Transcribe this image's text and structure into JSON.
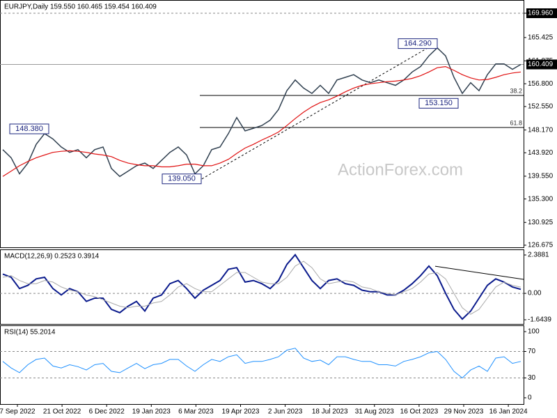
{
  "chart_data": [
    {
      "type": "line",
      "title": "EURJPY,Daily  159.550 160.465 159.454 160.409",
      "watermark": "ActionForex.com",
      "ylim": [
        126.28,
        172.43
      ],
      "yticks": [
        {
          "value": 169.96,
          "label": "169.960"
        },
        {
          "value": 165.425,
          "label": "165.425"
        },
        {
          "value": 161.075,
          "label": "161.075"
        },
        {
          "value": 156.8,
          "label": "156.800"
        },
        {
          "value": 152.55,
          "label": "152.550"
        },
        {
          "value": 148.17,
          "label": "148.170"
        },
        {
          "value": 143.92,
          "label": "143.920"
        },
        {
          "value": 139.55,
          "label": "139.550"
        },
        {
          "value": 135.3,
          "label": "135.300"
        },
        {
          "value": 130.925,
          "label": "130.925"
        },
        {
          "value": 126.675,
          "label": "126.675"
        }
      ],
      "guide_lines": [
        169.96
      ],
      "last_price": {
        "value": 160.409,
        "label": "160.409"
      },
      "fib_levels": [
        {
          "value": 154.62,
          "label": "38.2"
        },
        {
          "value": 148.64,
          "label": "61.8"
        }
      ],
      "annotations": [
        {
          "value": 148.38,
          "label": "148.380"
        },
        {
          "value": 139.05,
          "label": "139.050"
        },
        {
          "value": 164.29,
          "label": "164.290"
        },
        {
          "value": 153.15,
          "label": "153.150"
        }
      ],
      "trendline": [
        139.05,
        164.29
      ],
      "series": [
        {
          "color": "#2f3f4f",
          "values": [
            144.5,
            143.0,
            140.0,
            142.0,
            145.5,
            147.5,
            146.5,
            145.0,
            144.0,
            144.5,
            143.0,
            144.5,
            145.0,
            141.0,
            139.5,
            140.5,
            141.5,
            142.0,
            141.0,
            142.5,
            144.0,
            145.0,
            143.5,
            140.0,
            141.5,
            144.5,
            145.0,
            147.5,
            150.5,
            148.0,
            148.5,
            149.0,
            150.0,
            152.0,
            155.5,
            157.5,
            156.0,
            155.0,
            156.5,
            155.0,
            157.5,
            158.0,
            158.5,
            157.5,
            157.0,
            157.5,
            157.0,
            156.5,
            157.5,
            159.0,
            160.0,
            162.0,
            163.5,
            162.0,
            158.0,
            155.0,
            157.0,
            155.5,
            158.5,
            160.5,
            160.5,
            159.5,
            160.4
          ]
        },
        {
          "color": "#e01010",
          "values": [
            139.5,
            140.5,
            141.5,
            142.3,
            143.0,
            143.5,
            144,
            144.2,
            144.3,
            144.2,
            144.0,
            143.7,
            143.5,
            143.2,
            142.5,
            142.0,
            141.7,
            141.5,
            141.5,
            141.3,
            141.3,
            141.5,
            141.8,
            141.8,
            141.5,
            141.5,
            142.0,
            142.7,
            143.8,
            144.8,
            145.5,
            146.3,
            147.0,
            147.8,
            149.0,
            150.3,
            151.5,
            152.5,
            153.3,
            153.8,
            154.5,
            155.3,
            156.0,
            156.5,
            156.8,
            157.0,
            157.2,
            157.3,
            157.5,
            157.8,
            158.3,
            159.0,
            159.8,
            160.0,
            159.3,
            158.5,
            157.9,
            157.5,
            157.6,
            158.0,
            158.5,
            158.8,
            159.0
          ]
        }
      ]
    },
    {
      "type": "line",
      "title": "MACD(12,26,9) 0.2523 0.3914",
      "ylim": [
        -1.904,
        2.735
      ],
      "yticks": [
        2.3881,
        {
          "value": 0,
          "label": "0.00"
        },
        -1.6439
      ],
      "guide_lines": [
        0
      ],
      "trendline": [
        1.69,
        0.87
      ],
      "series": [
        {
          "color": "#0a1a8c",
          "width": 2,
          "values": [
            1.2,
            1.0,
            0.3,
            0.5,
            0.9,
            1.0,
            0.3,
            -0.1,
            0.3,
            0.1,
            -0.5,
            -0.3,
            -0.3,
            -1.0,
            -1.2,
            -0.8,
            -0.5,
            -1.1,
            -0.3,
            -0.1,
            0.6,
            0.8,
            0.3,
            -0.3,
            0.2,
            0.5,
            0.8,
            1.5,
            1.6,
            0.7,
            0.8,
            0.6,
            0.3,
            0.8,
            1.8,
            2.4,
            1.6,
            0.8,
            0.3,
            0.8,
            0.9,
            0.6,
            0.5,
            0.2,
            0.1,
            0.1,
            -0.1,
            -0.1,
            0.2,
            0.6,
            1.1,
            1.7,
            1.1,
            0.0,
            -1.0,
            -1.6,
            -1.1,
            -0.3,
            0.5,
            0.9,
            0.7,
            0.4,
            0.25
          ]
        },
        {
          "color": "#a9a9a9",
          "width": 1,
          "values": [
            1.0,
            1.1,
            0.8,
            0.6,
            0.6,
            0.8,
            0.7,
            0.4,
            0.2,
            0.1,
            -0.1,
            -0.2,
            -0.4,
            -0.6,
            -0.8,
            -0.9,
            -0.8,
            -0.8,
            -0.6,
            -0.5,
            -0.1,
            0.4,
            0.6,
            0.3,
            0.1,
            0.1,
            0.5,
            0.9,
            1.3,
            1.3,
            1.0,
            0.7,
            0.6,
            0.6,
            1.0,
            1.7,
            2.0,
            1.6,
            0.9,
            0.6,
            0.7,
            0.8,
            0.7,
            0.4,
            0.3,
            0.1,
            0,
            -0.1,
            0.1,
            0.3,
            0.7,
            1.2,
            1.3,
            0.9,
            0,
            -0.9,
            -1.3,
            -1.0,
            -0.3,
            0.4,
            0.7,
            0.5,
            0.39
          ]
        }
      ]
    },
    {
      "type": "line",
      "title": "RSI(14) 55.2014",
      "ylim": [
        -9.5,
        109.5
      ],
      "yticks": [
        100,
        70,
        30,
        0
      ],
      "guide_lines": [
        70,
        30
      ],
      "xtick_labels": [
        "7 Sep 2022",
        "21 Oct 2022",
        "6 Dec 2022",
        "19 Jan 2023",
        "6 Mar 2023",
        "19 Apr 2023",
        "2 Jun 2023",
        "18 Jul 2023",
        "31 Aug 2023",
        "16 Oct 2023",
        "29 Nov 2023",
        "16 Jan 2024"
      ],
      "series": [
        {
          "color": "#1e90ff",
          "width": 1,
          "values": [
            55,
            45,
            38,
            50,
            58,
            60,
            48,
            45,
            50,
            47,
            42,
            50,
            52,
            40,
            38,
            45,
            52,
            44,
            50,
            52,
            58,
            58,
            48,
            40,
            50,
            58,
            55,
            62,
            65,
            52,
            55,
            55,
            58,
            62,
            72,
            75,
            60,
            55,
            57,
            50,
            62,
            62,
            58,
            55,
            55,
            50,
            50,
            48,
            55,
            58,
            62,
            68,
            70,
            58,
            40,
            30,
            42,
            48,
            40,
            60,
            62,
            52,
            55
          ]
        }
      ]
    }
  ]
}
